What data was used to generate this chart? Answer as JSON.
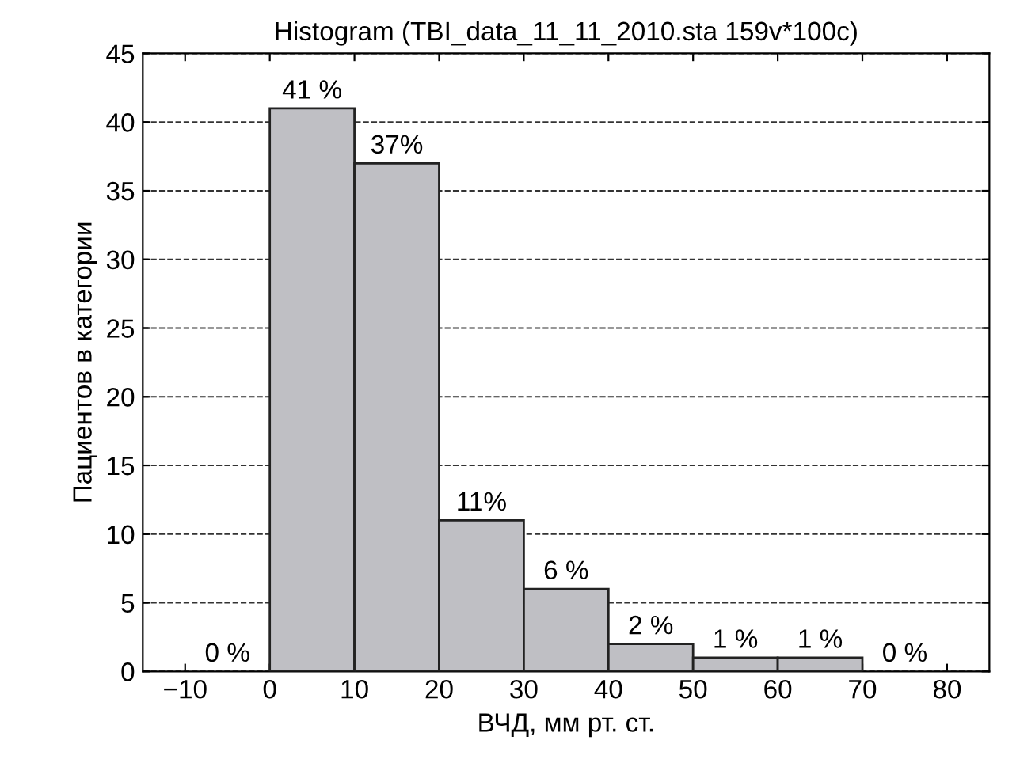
{
  "chart_data": {
    "type": "histogram",
    "title": "Histogram (TBI_data_11_11_2010.sta 159v*100c)",
    "xlabel": "ВЧД, мм рт. ст.",
    "ylabel": "Пациентов в категории",
    "bins": [
      -10,
      0,
      10,
      20,
      30,
      40,
      50,
      60,
      70,
      80
    ],
    "values": [
      0,
      41,
      37,
      11,
      6,
      2,
      1,
      1,
      0
    ],
    "value_labels": [
      "0 %",
      "41 %",
      "37%",
      "11%",
      "6 %",
      "2 %",
      "1 %",
      "1 %",
      "0 %"
    ],
    "color": "#bfbfc4",
    "xlim": [
      -15,
      85
    ],
    "xticks": [
      {
        "value": -10,
        "label": "−10"
      },
      0,
      10,
      20,
      30,
      40,
      50,
      60,
      70,
      80
    ],
    "ylim": [
      0,
      45
    ],
    "yticks": [
      0,
      5,
      10,
      15,
      20,
      25,
      30,
      35,
      40,
      45
    ],
    "grid": "y",
    "line_style": "dashed"
  }
}
